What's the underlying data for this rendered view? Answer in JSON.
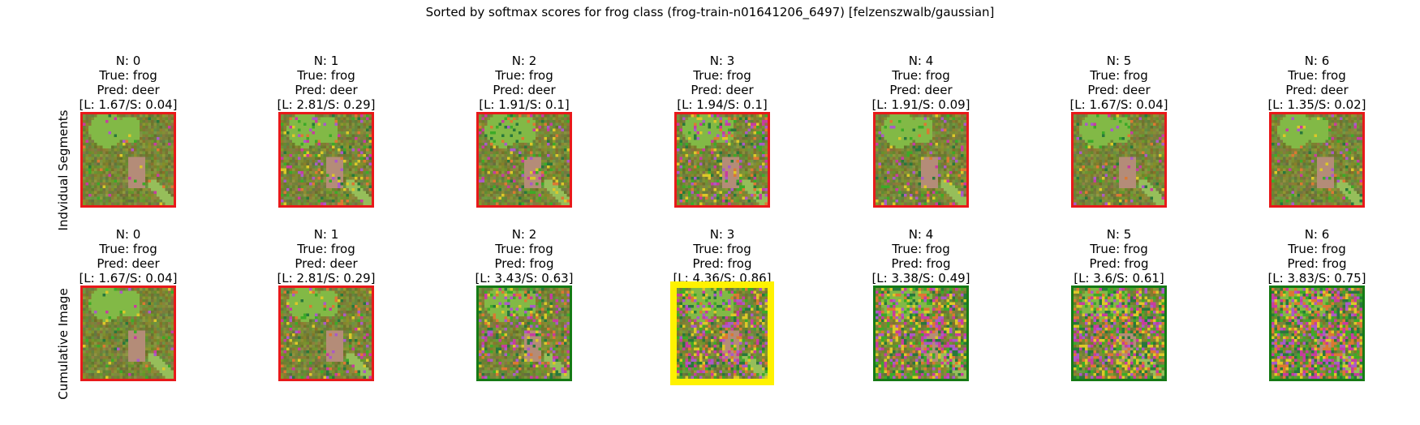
{
  "title": "Sorted by softmax scores for frog class (frog-train-n01641206_6497) [felzenszwalb/gaussian]",
  "colors": {
    "wrong": "#e8191a",
    "correct": "#157a15",
    "highlight": "#fff200"
  },
  "rows": [
    {
      "label": "Indvidual Segments",
      "cells": [
        {
          "n": "N: 0",
          "true": "True: frog",
          "pred": "Pred: deer",
          "score": "[L: 1.67/S: 0.04]",
          "border": "wrong",
          "noise": 0.05
        },
        {
          "n": "N: 1",
          "true": "True: frog",
          "pred": "Pred: deer",
          "score": "[L: 2.81/S: 0.29]",
          "border": "wrong",
          "noise": 0.15
        },
        {
          "n": "N: 2",
          "true": "True: frog",
          "pred": "Pred: deer",
          "score": "[L: 1.91/S: 0.1]",
          "border": "wrong",
          "noise": 0.15
        },
        {
          "n": "N: 3",
          "true": "True: frog",
          "pred": "Pred: deer",
          "score": "[L: 1.94/S: 0.1]",
          "border": "wrong",
          "noise": 0.25
        },
        {
          "n": "N: 4",
          "true": "True: frog",
          "pred": "Pred: deer",
          "score": "[L: 1.91/S: 0.09]",
          "border": "wrong",
          "noise": 0.15
        },
        {
          "n": "N: 5",
          "true": "True: frog",
          "pred": "Pred: deer",
          "score": "[L: 1.67/S: 0.04]",
          "border": "wrong",
          "noise": 0.1
        },
        {
          "n": "N: 6",
          "true": "True: frog",
          "pred": "Pred: deer",
          "score": "[L: 1.35/S: 0.02]",
          "border": "wrong",
          "noise": 0.1
        }
      ]
    },
    {
      "label": "Cumulative Image",
      "cells": [
        {
          "n": "N: 0",
          "true": "True: frog",
          "pred": "Pred: deer",
          "score": "[L: 1.67/S: 0.04]",
          "border": "wrong",
          "noise": 0.05
        },
        {
          "n": "N: 1",
          "true": "True: frog",
          "pred": "Pred: deer",
          "score": "[L: 2.81/S: 0.29]",
          "border": "wrong",
          "noise": 0.15
        },
        {
          "n": "N: 2",
          "true": "True: frog",
          "pred": "Pred: frog",
          "score": "[L: 3.43/S: 0.63]",
          "border": "correct",
          "noise": 0.3
        },
        {
          "n": "N: 3",
          "true": "True: frog",
          "pred": "Pred: frog",
          "score": "[L: 4.36/S: 0.86]",
          "border": "highlight",
          "noise": 0.45
        },
        {
          "n": "N: 4",
          "true": "True: frog",
          "pred": "Pred: frog",
          "score": "[L: 3.38/S: 0.49]",
          "border": "correct",
          "noise": 0.55
        },
        {
          "n": "N: 5",
          "true": "True: frog",
          "pred": "Pred: frog",
          "score": "[L: 3.6/S: 0.61]",
          "border": "correct",
          "noise": 0.6
        },
        {
          "n": "N: 6",
          "true": "True: frog",
          "pred": "Pred: frog",
          "score": "[L: 3.83/S: 0.75]",
          "border": "correct",
          "noise": 0.7
        }
      ]
    }
  ]
}
